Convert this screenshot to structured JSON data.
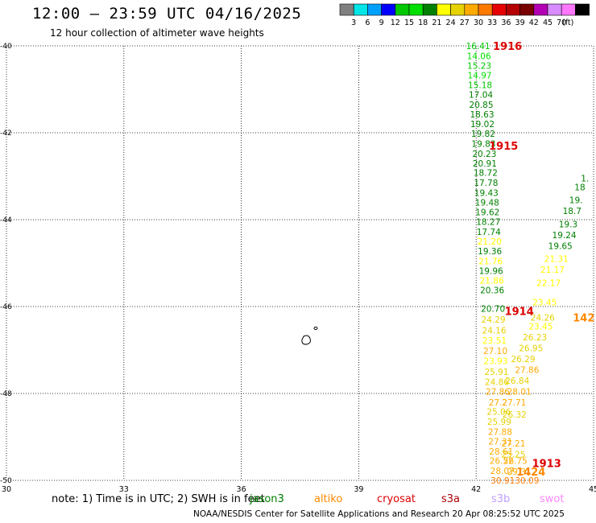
{
  "header": {
    "title": "12:00 – 23:59 UTC 04/16/2025",
    "subtitle": "12 hour collection of altimeter wave heights"
  },
  "colorbar": {
    "ticks": [
      "3",
      "6",
      "9",
      "12",
      "15",
      "18",
      "21",
      "24",
      "27",
      "30",
      "33",
      "36",
      "39",
      "42",
      "45",
      "70"
    ],
    "unit": "(ft)",
    "colors": [
      "#808080",
      "#00e5e5",
      "#00a0ff",
      "#0000ff",
      "#00c800",
      "#00e000",
      "#008000",
      "#ffff00",
      "#e6d200",
      "#ffaa00",
      "#ff7800",
      "#e60000",
      "#b40000",
      "#780000",
      "#b400b4",
      "#d88cff",
      "#ff78ff",
      "#000000"
    ]
  },
  "map": {
    "lon_range": [
      30,
      45
    ],
    "lat_range": [
      -50,
      -40
    ],
    "x_ticks": [
      "30",
      "33",
      "36",
      "39",
      "42",
      "45"
    ],
    "y_ticks": [
      "-40",
      "-42",
      "-44",
      "-46",
      "-48",
      "-50"
    ]
  },
  "pass_labels": [
    {
      "text": "1916",
      "color": "#dd0000",
      "lon": 42.8,
      "lat": -40.0
    },
    {
      "text": "1915",
      "color": "#dd0000",
      "lon": 42.7,
      "lat": -42.3
    },
    {
      "text": "1914",
      "color": "#dd0000",
      "lon": 43.1,
      "lat": -46.1
    },
    {
      "text": "1913",
      "color": "#dd0000",
      "lon": 43.8,
      "lat": -49.6
    },
    {
      "text": "1424",
      "color": "#ff8800",
      "lon": 43.4,
      "lat": -49.8
    },
    {
      "text": "142",
      "color": "#ff8800",
      "lon": 44.75,
      "lat": -46.25
    }
  ],
  "track_values": [
    {
      "v": "16.41",
      "c": "#00c800",
      "lon": 42.05,
      "lat": -40.0
    },
    {
      "v": "14.06",
      "c": "#00e000",
      "lon": 42.07,
      "lat": -40.23
    },
    {
      "v": "15.23",
      "c": "#00c800",
      "lon": 42.08,
      "lat": -40.45
    },
    {
      "v": "14.97",
      "c": "#00e000",
      "lon": 42.09,
      "lat": -40.68
    },
    {
      "v": "15.18",
      "c": "#00c800",
      "lon": 42.1,
      "lat": -40.9
    },
    {
      "v": "17.04",
      "c": "#008000",
      "lon": 42.12,
      "lat": -41.12
    },
    {
      "v": "20.85",
      "c": "#008000",
      "lon": 42.13,
      "lat": -41.35
    },
    {
      "v": "18.63",
      "c": "#008000",
      "lon": 42.15,
      "lat": -41.57
    },
    {
      "v": "19.02",
      "c": "#008000",
      "lon": 42.16,
      "lat": -41.8
    },
    {
      "v": "19.82",
      "c": "#008000",
      "lon": 42.18,
      "lat": -42.02
    },
    {
      "v": "19.83",
      "c": "#008000",
      "lon": 42.19,
      "lat": -42.25
    },
    {
      "v": "20.23",
      "c": "#008000",
      "lon": 42.21,
      "lat": -42.48
    },
    {
      "v": "20.91",
      "c": "#008000",
      "lon": 42.22,
      "lat": -42.7
    },
    {
      "v": "18.72",
      "c": "#008000",
      "lon": 42.24,
      "lat": -42.92
    },
    {
      "v": "17.78",
      "c": "#008000",
      "lon": 42.25,
      "lat": -43.15
    },
    {
      "v": "19.43",
      "c": "#008000",
      "lon": 42.26,
      "lat": -43.38
    },
    {
      "v": "19.48",
      "c": "#008000",
      "lon": 42.28,
      "lat": -43.6
    },
    {
      "v": "19.62",
      "c": "#008000",
      "lon": 42.29,
      "lat": -43.82
    },
    {
      "v": "18.27",
      "c": "#008000",
      "lon": 42.31,
      "lat": -44.05
    },
    {
      "v": "17.74",
      "c": "#008000",
      "lon": 42.32,
      "lat": -44.28
    },
    {
      "v": "21.20",
      "c": "#ffff00",
      "lon": 42.34,
      "lat": -44.5
    },
    {
      "v": "19.36",
      "c": "#008000",
      "lon": 42.35,
      "lat": -44.72
    },
    {
      "v": "21.76",
      "c": "#ffff00",
      "lon": 42.37,
      "lat": -44.95
    },
    {
      "v": "19.96",
      "c": "#008000",
      "lon": 42.38,
      "lat": -45.18
    },
    {
      "v": "21.86",
      "c": "#ffff00",
      "lon": 42.4,
      "lat": -45.4
    },
    {
      "v": "20.36",
      "c": "#008000",
      "lon": 42.41,
      "lat": -45.62
    },
    {
      "v": "20.70",
      "c": "#008000",
      "lon": 42.43,
      "lat": -46.05
    },
    {
      "v": "24.29",
      "c": "#e6d200",
      "lon": 42.44,
      "lat": -46.3
    },
    {
      "v": "24.16",
      "c": "#e6d200",
      "lon": 42.46,
      "lat": -46.55
    },
    {
      "v": "23.51",
      "c": "#ffff00",
      "lon": 42.47,
      "lat": -46.78
    },
    {
      "v": "27.10",
      "c": "#ffaa00",
      "lon": 42.49,
      "lat": -47.02
    },
    {
      "v": "23.93",
      "c": "#ffff00",
      "lon": 42.5,
      "lat": -47.25
    },
    {
      "v": "25.91",
      "c": "#e6d200",
      "lon": 42.52,
      "lat": -47.5
    },
    {
      "v": "24.86",
      "c": "#e6d200",
      "lon": 42.53,
      "lat": -47.73
    },
    {
      "v": "27.86",
      "c": "#ffaa00",
      "lon": 42.55,
      "lat": -47.95
    },
    {
      "v": "27.2",
      "c": "#ffaa00",
      "lon": 42.56,
      "lat": -48.2
    },
    {
      "v": "25.06",
      "c": "#e6d200",
      "lon": 42.58,
      "lat": -48.42
    },
    {
      "v": "25.99",
      "c": "#e6d200",
      "lon": 42.59,
      "lat": -48.65
    },
    {
      "v": "27.88",
      "c": "#ffaa00",
      "lon": 42.61,
      "lat": -48.88
    },
    {
      "v": "27.31",
      "c": "#ffaa00",
      "lon": 42.62,
      "lat": -49.1
    },
    {
      "v": "28.61",
      "c": "#ffaa00",
      "lon": 42.64,
      "lat": -49.33
    },
    {
      "v": "26.52",
      "c": "#ffaa00",
      "lon": 42.65,
      "lat": -49.55
    },
    {
      "v": "28.07",
      "c": "#ffaa00",
      "lon": 42.67,
      "lat": -49.78
    },
    {
      "v": "30.91",
      "c": "#ff7800",
      "lon": 42.68,
      "lat": -50.0
    },
    {
      "v": "30.09",
      "c": "#ff7800",
      "lon": 43.3,
      "lat": -50.0
    },
    {
      "v": "29.31",
      "c": "#ffaa00",
      "lon": 43.1,
      "lat": -49.8
    },
    {
      "v": "26.75",
      "c": "#ffaa00",
      "lon": 43.0,
      "lat": -49.55
    },
    {
      "v": "25.25",
      "c": "#e6d200",
      "lon": 42.95,
      "lat": -49.4
    },
    {
      "v": "27.21",
      "c": "#ffaa00",
      "lon": 42.95,
      "lat": -49.15
    },
    {
      "v": "27.71",
      "c": "#ffaa00",
      "lon": 42.97,
      "lat": -48.2
    },
    {
      "v": "26.32",
      "c": "#e6d200",
      "lon": 42.98,
      "lat": -48.48
    },
    {
      "v": "28.01",
      "c": "#ffaa00",
      "lon": 43.1,
      "lat": -47.95
    },
    {
      "v": "26.84",
      "c": "#e6d200",
      "lon": 43.05,
      "lat": -47.7
    },
    {
      "v": "27.86",
      "c": "#ffaa00",
      "lon": 43.3,
      "lat": -47.45
    },
    {
      "v": "26.29",
      "c": "#e6d200",
      "lon": 43.2,
      "lat": -47.2
    },
    {
      "v": "26.95",
      "c": "#e6d200",
      "lon": 43.4,
      "lat": -46.95
    },
    {
      "v": "26.23",
      "c": "#e6d200",
      "lon": 43.5,
      "lat": -46.7
    },
    {
      "v": "23.45",
      "c": "#ffff00",
      "lon": 43.65,
      "lat": -46.45
    },
    {
      "v": "24.26",
      "c": "#e6d200",
      "lon": 43.7,
      "lat": -46.25
    },
    {
      "v": "23.45",
      "c": "#ffff00",
      "lon": 43.75,
      "lat": -45.9
    },
    {
      "v": "22.17",
      "c": "#ffff00",
      "lon": 43.85,
      "lat": -45.45
    },
    {
      "v": "21.17",
      "c": "#ffff00",
      "lon": 43.95,
      "lat": -45.15
    },
    {
      "v": "21.31",
      "c": "#ffff00",
      "lon": 44.05,
      "lat": -44.9
    },
    {
      "v": "19.65",
      "c": "#008000",
      "lon": 44.15,
      "lat": -44.6
    },
    {
      "v": "19.24",
      "c": "#008000",
      "lon": 44.25,
      "lat": -44.35
    },
    {
      "v": "19.3",
      "c": "#008000",
      "lon": 44.35,
      "lat": -44.1
    },
    {
      "v": "18.7",
      "c": "#008000",
      "lon": 44.45,
      "lat": -43.8
    },
    {
      "v": "19.",
      "c": "#008000",
      "lon": 44.55,
      "lat": -43.55
    },
    {
      "v": "18",
      "c": "#008000",
      "lon": 44.65,
      "lat": -43.25
    },
    {
      "v": "1.",
      "c": "#008000",
      "lon": 44.78,
      "lat": -43.05
    }
  ],
  "missions": [
    {
      "name": "jason3",
      "color": "#008000"
    },
    {
      "name": "altiko",
      "color": "#ff8800"
    },
    {
      "name": "cryosat",
      "color": "#dd0000"
    },
    {
      "name": "s3a",
      "color": "#aa0000"
    },
    {
      "name": "s3b",
      "color": "#c0a0ff"
    },
    {
      "name": "swot",
      "color": "#ff88ff"
    }
  ],
  "note": "note: 1) Time is in UTC; 2) SWH is in feet",
  "footer": "NOAA/NESDIS Center for Satellite Applications and Research    20 Apr 08:25:52 UTC 2025"
}
